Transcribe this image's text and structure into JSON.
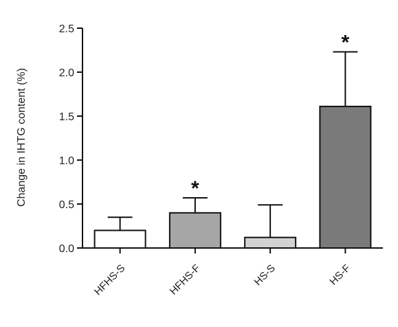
{
  "chart_data": {
    "type": "bar",
    "title": "",
    "xlabel": "",
    "ylabel": "Change in IHTG content  (%)",
    "ylim": [
      0,
      2.5
    ],
    "yticks": [
      "0.0",
      "0.5",
      "1.0",
      "1.5",
      "2.0",
      "2.5"
    ],
    "categories": [
      "HFHS-S",
      "HFHS-F",
      "HS-S",
      "HS-F"
    ],
    "values": [
      0.2,
      0.4,
      0.12,
      1.61
    ],
    "error_upper": [
      0.15,
      0.17,
      0.37,
      0.62
    ],
    "significance": [
      "",
      "*",
      "",
      "*"
    ],
    "bar_colors": [
      "#ffffff",
      "#a6a6a6",
      "#d2d2d2",
      "#7a7a7a"
    ],
    "grid": false,
    "legend": "none"
  }
}
